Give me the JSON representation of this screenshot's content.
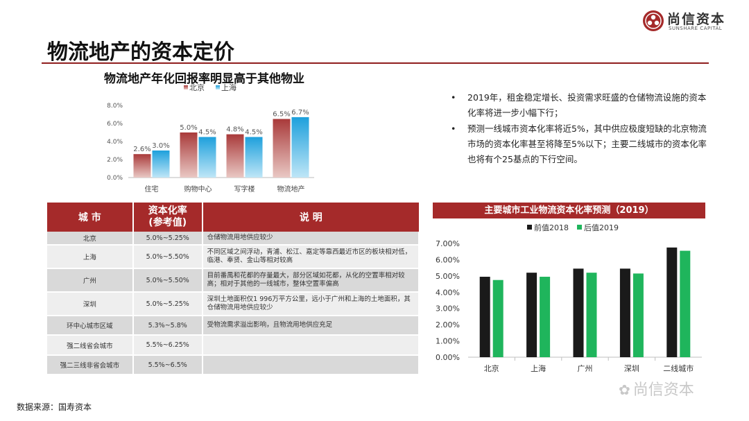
{
  "brand": {
    "name": "尚信资本",
    "english": "SUNSHARE CAPITAL"
  },
  "page": {
    "title": "物流地产的资本定价"
  },
  "chart1_title": "物流地产年化回报率明显高于其他物业",
  "bullets": [
    "2019年，租金稳定增长、投资需求旺盛的仓储物流设施的资本化率将进一步小幅下行；",
    "预测一线城市资本化率将近5%，其中供应极度短缺的北京物流市场的资本化率甚至将降至5%以下；主要二线城市的资本化率也将有个25基点的下行空间。"
  ],
  "bullet_marker": "•",
  "table": {
    "headers": [
      "城 市",
      "资本化率\n(参考值)",
      "说 明"
    ],
    "rows": [
      {
        "city": "北京",
        "rate": "5.0%~5.25%",
        "note": "仓储物流用地供应较少"
      },
      {
        "city": "上海",
        "rate": "5.0%~5.50%",
        "note": "不同区域之间浮动，青浦、松江、嘉定等靠西最近市区的板块相对低，临港、奉贤、金山等相对较高"
      },
      {
        "city": "广州",
        "rate": "5.0%~5.50%",
        "note": "目前番禺和花都的存量最大，部分区域如花都，从化的空置率相对较高；相对于其他的一线城市，整体空置率偏高"
      },
      {
        "city": "深圳",
        "rate": "5.0%~5.25%",
        "note": "深圳土地面积仅1 996万平方公里，远小于广州和上海的土地面积，其仓储物流用地供应较少"
      },
      {
        "city": "环中心城市区域",
        "rate": "5.3%~5.8%",
        "note": "受物流需求溢出影响，且物流用地供应充足"
      },
      {
        "city": "强二线省会城市",
        "rate": "5.5%~6.25%",
        "note": ""
      },
      {
        "city": "强二三线非省会城市",
        "rate": "5.5%~6.5%",
        "note": ""
      }
    ]
  },
  "chart2_title": "主要城市工业物流资本化率预测（2019）",
  "source": "数据来源：国寿资本",
  "watermark": "尚信资本",
  "colors": {
    "accent_red": "#a52a2a",
    "beijing_top": "#a93a3a",
    "beijing_bottom": "#e9c8c4",
    "shanghai_top": "#1ea0dc",
    "shanghai_bottom": "#bfe6f7",
    "before": "#1a1a1a",
    "after": "#1fb55c"
  },
  "chart_data": [
    {
      "type": "bar",
      "title": "物流地产年化回报率明显高于其他物业",
      "categories": [
        "住宅",
        "购物中心",
        "写字楼",
        "物流地产"
      ],
      "series": [
        {
          "name": "北京",
          "values": [
            2.6,
            5.0,
            4.8,
            6.5
          ]
        },
        {
          "name": "上海",
          "values": [
            3.0,
            4.5,
            4.5,
            6.7
          ]
        }
      ],
      "data_labels": [
        [
          "2.6%",
          "5.0%",
          "4.8%",
          "6.5%"
        ],
        [
          "3.0%",
          "4.5%",
          "4.5%",
          "6.7%"
        ]
      ],
      "ylim": [
        0,
        8
      ],
      "yticks": [
        "0.0%",
        "2.0%",
        "4.0%",
        "6.0%",
        "8.0%"
      ],
      "legend": "top",
      "grid": false
    },
    {
      "type": "bar",
      "title": "主要城市工业物流资本化率预测（2019）",
      "categories": [
        "北京",
        "上海",
        "广州",
        "深圳",
        "二线城市"
      ],
      "series": [
        {
          "name": "前值2018",
          "values": [
            4.95,
            5.2,
            5.45,
            5.45,
            6.75
          ]
        },
        {
          "name": "后值2019",
          "values": [
            4.75,
            4.95,
            5.2,
            5.15,
            6.55
          ]
        }
      ],
      "ylim": [
        0,
        7
      ],
      "yticks": [
        "0.00%",
        "1.00%",
        "2.00%",
        "3.00%",
        "4.00%",
        "5.00%",
        "6.00%",
        "7.00%"
      ],
      "legend": "top",
      "grid": false
    }
  ]
}
